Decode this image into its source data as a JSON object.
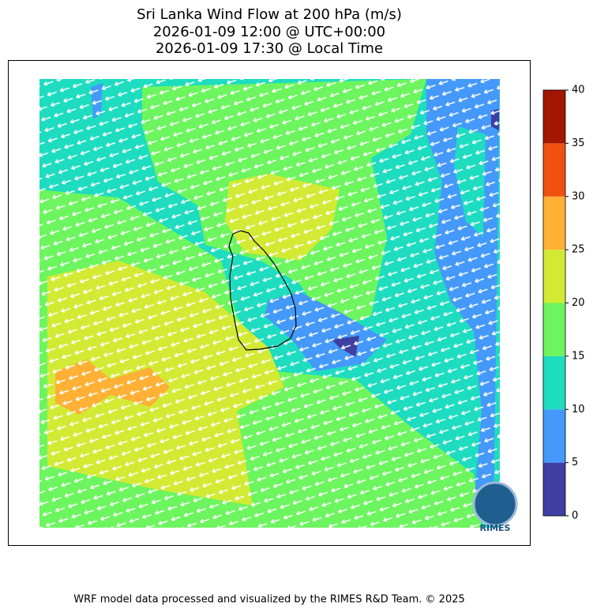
{
  "title": [
    "Sri Lanka Wind Flow at 200 hPa (m/s)",
    "2026-01-09 12:00 @ UTC+00:00",
    "2026-01-09 17:30 @ Local Time"
  ],
  "colorbar": {
    "levels": [
      0,
      5,
      10,
      15,
      20,
      25,
      30,
      35,
      40
    ],
    "colors": [
      "#3f3fa3",
      "#4499fa",
      "#1edcc0",
      "#6cf55e",
      "#d2ea34",
      "#ffb035",
      "#f05010",
      "#a31600"
    ]
  },
  "logo": "RIMES",
  "footer": "WRF model data processed and visualized by the RIMES R&D Team. © 2025"
}
